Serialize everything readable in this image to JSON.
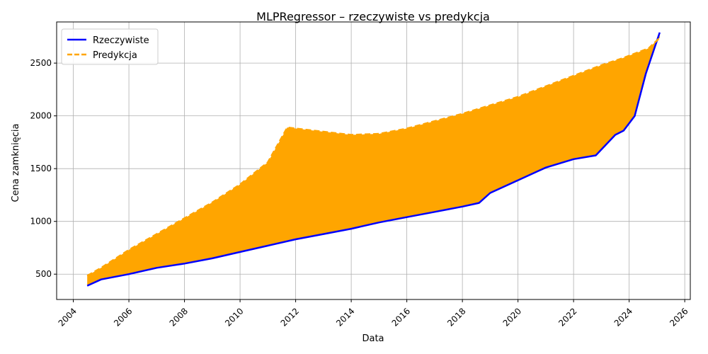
{
  "chart_data": {
    "type": "line",
    "title": "MLPRegressor – rzeczywiste vs predykcja",
    "xlabel": "Data",
    "ylabel": "Cena zamknięcia",
    "xlim": [
      2003.4,
      2026.2
    ],
    "ylim": [
      260,
      2890
    ],
    "x_ticks": [
      {
        "value": 2004,
        "label": "2004"
      },
      {
        "value": 2006,
        "label": "2006"
      },
      {
        "value": 2008,
        "label": "2008"
      },
      {
        "value": 2010,
        "label": "2010"
      },
      {
        "value": 2012,
        "label": "2012"
      },
      {
        "value": 2014,
        "label": "2014"
      },
      {
        "value": 2016,
        "label": "2016"
      },
      {
        "value": 2018,
        "label": "2018"
      },
      {
        "value": 2020,
        "label": "2020"
      },
      {
        "value": 2022,
        "label": "2022"
      },
      {
        "value": 2024,
        "label": "2024"
      },
      {
        "value": 2026,
        "label": "2026"
      }
    ],
    "y_ticks": [
      {
        "value": 500,
        "label": "500"
      },
      {
        "value": 1000,
        "label": "1000"
      },
      {
        "value": 1500,
        "label": "1500"
      },
      {
        "value": 2000,
        "label": "2000"
      },
      {
        "value": 2500,
        "label": "2500"
      }
    ],
    "grid": true,
    "legend_position": "top-left",
    "series": [
      {
        "name": "Rzeczywiste",
        "color": "#0000ff",
        "style": "solid",
        "x": [
          2004.5,
          2005.0,
          2006.0,
          2007.0,
          2008.0,
          2009.0,
          2010.0,
          2011.0,
          2012.0,
          2013.0,
          2014.0,
          2015.0,
          2016.0,
          2017.0,
          2018.0,
          2018.6,
          2019.0,
          2020.0,
          2021.0,
          2022.0,
          2022.8,
          2023.5,
          2023.8,
          2024.2,
          2024.6,
          2025.1
        ],
        "y": [
          390,
          450,
          500,
          560,
          600,
          650,
          710,
          770,
          830,
          880,
          930,
          990,
          1040,
          1090,
          1140,
          1175,
          1270,
          1390,
          1510,
          1590,
          1625,
          1820,
          1860,
          2000,
          2400,
          2790
        ]
      },
      {
        "name": "Predykcja",
        "color": "#ffa500",
        "style": "dashed",
        "x": [
          2004.5,
          2005.0,
          2006.0,
          2007.0,
          2008.0,
          2009.0,
          2010.0,
          2011.0,
          2011.7,
          2012.0,
          2013.0,
          2014.0,
          2015.0,
          2016.0,
          2017.0,
          2018.0,
          2019.0,
          2020.0,
          2021.0,
          2022.0,
          2023.0,
          2023.8,
          2024.3,
          2024.7,
          2025.1
        ],
        "y": [
          485,
          560,
          730,
          880,
          1030,
          1180,
          1350,
          1560,
          1890,
          1880,
          1850,
          1820,
          1830,
          1880,
          1950,
          2020,
          2100,
          2180,
          2280,
          2380,
          2480,
          2550,
          2600,
          2640,
          2740
        ]
      }
    ]
  }
}
